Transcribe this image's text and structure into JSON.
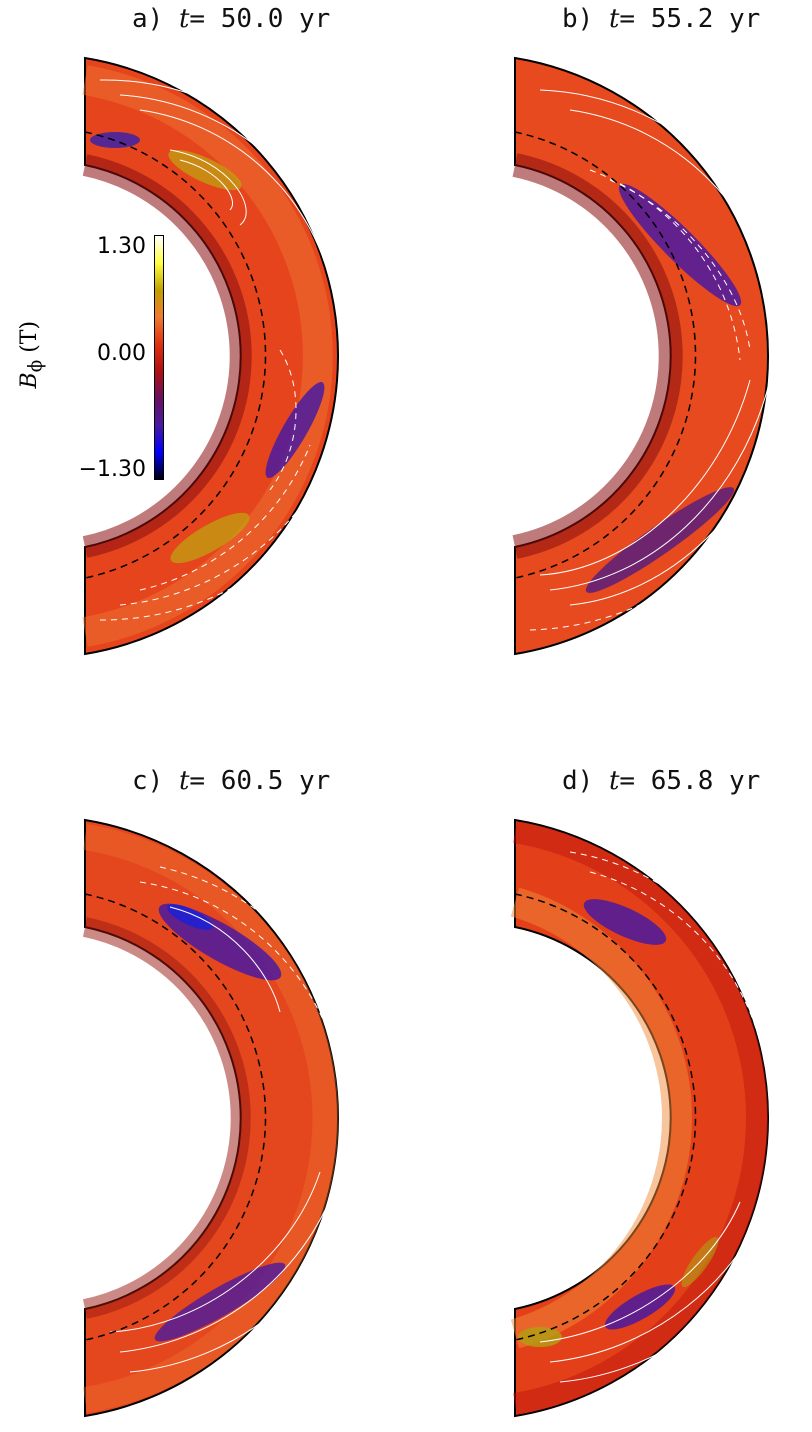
{
  "panels": [
    {
      "id": "a",
      "prefix": "a) ",
      "t_symbol": "t",
      "value": "= 50.0 yr"
    },
    {
      "id": "b",
      "prefix": "b) ",
      "t_symbol": "t",
      "value": "= 55.2 yr"
    },
    {
      "id": "c",
      "prefix": "c) ",
      "t_symbol": "t",
      "value": "= 60.5 yr"
    },
    {
      "id": "d",
      "prefix": "d) ",
      "t_symbol": "t",
      "value": "= 65.8 yr"
    }
  ],
  "colorbar": {
    "label_symbol": "B",
    "label_sub": "ϕ",
    "label_unit": " (T)",
    "max": "1.30",
    "mid": "0.00",
    "min": "−1.30",
    "colors": [
      "#000010",
      "#0000ff",
      "#4a1aa0",
      "#6a1060",
      "#b01010",
      "#e03010",
      "#f07a30",
      "#c0a000",
      "#ffff40",
      "#ffffff"
    ]
  }
}
